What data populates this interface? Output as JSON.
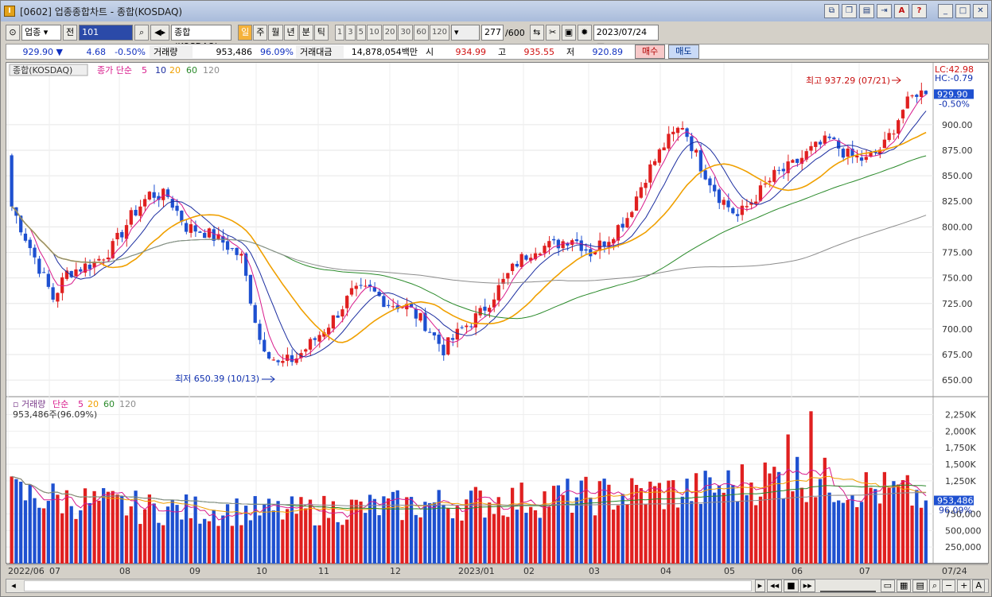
{
  "window": {
    "title": "[0602] 업종종합차트 - 종합(KOSDAQ)",
    "title_icons": [
      "link-icon",
      "copy-icon",
      "print-icon",
      "pin-icon",
      "a-icon",
      "help-icon"
    ],
    "window_icons": [
      "minimize-icon",
      "maximize-icon",
      "close-icon"
    ]
  },
  "toolbar": {
    "market_select": "업종",
    "prev_label": "전",
    "code_value": "101",
    "name_value": "종합(KOSDAQ)",
    "period_buttons": [
      "일",
      "주",
      "월",
      "년",
      "분",
      "틱"
    ],
    "active_period": "일",
    "interval_buttons": [
      "1",
      "3",
      "5",
      "10",
      "20",
      "30",
      "60",
      "120"
    ],
    "count_value": "277",
    "count_total": "/600",
    "date_value": "2023/07/24"
  },
  "quote": {
    "price": "929.90",
    "direction": "▼",
    "change": "4.68",
    "change_pct": "-0.50%",
    "volume_label": "거래량",
    "volume_value": "953,486",
    "volume_pct": "96.09%",
    "amount_label": "거래대금",
    "amount_value": "14,878,054백만",
    "open_label": "시",
    "open_value": "934.99",
    "high_label": "고",
    "high_value": "935.55",
    "low_label": "저",
    "low_value": "920.89",
    "buy_label": "매수",
    "sell_label": "매도"
  },
  "price_panel": {
    "legend_name": "종합(KOSDAQ)",
    "ma_label": "종가 단순",
    "ma_periods": [
      "5",
      "10",
      "20",
      "60",
      "120"
    ],
    "ma_colors": [
      "#d81b8c",
      "#1c2ea0",
      "#f0a000",
      "#2a8a2a",
      "#8c8c8c"
    ],
    "y_ticks": [
      "900.00",
      "875.00",
      "850.00",
      "825.00",
      "800.00",
      "775.00",
      "750.00",
      "725.00",
      "700.00",
      "675.00",
      "650.00"
    ],
    "lc_label": "LC:42.98",
    "hc_label": "HC:-0.79",
    "last_price_tag": "929.90",
    "last_change_tag": "-0.50%",
    "high_annotation": "최고 937.29 (07/21)",
    "low_annotation": "최저 650.39 (10/13)"
  },
  "volume_panel": {
    "legend_name": "거래량",
    "ma_label": "단순",
    "ma_periods": [
      "5",
      "20",
      "60",
      "120"
    ],
    "current_text": "953,486주(96.09%)",
    "y_ticks": [
      "2,250K",
      "2,000K",
      "1,750K",
      "1,500K",
      "1,250K",
      "750,000",
      "500,000",
      "250,000"
    ],
    "last_volume_tag": "953,486",
    "last_pct_tag": "96.09%"
  },
  "x_axis": {
    "labels": [
      "2022/06",
      "07",
      "08",
      "09",
      "10",
      "11",
      "12",
      "2023/01",
      "02",
      "03",
      "04",
      "05",
      "06",
      "07"
    ],
    "right_label": "07/24"
  },
  "colors": {
    "up": "#e02020",
    "down": "#1e50d0",
    "accent": "#f5b23a"
  },
  "chart_data": [
    {
      "type": "candlestick",
      "title": "종합(KOSDAQ)",
      "ylim": [
        640,
        945
      ],
      "start_value": 870,
      "path": [
        [
          0,
          820
        ],
        [
          6,
          760
        ],
        [
          9,
          730
        ],
        [
          12,
          755
        ],
        [
          18,
          765
        ],
        [
          22,
          780
        ],
        [
          26,
          810
        ],
        [
          30,
          832
        ],
        [
          34,
          830
        ],
        [
          38,
          800
        ],
        [
          42,
          795
        ],
        [
          46,
          785
        ],
        [
          50,
          770
        ],
        [
          54,
          690
        ],
        [
          58,
          665
        ],
        [
          62,
          672
        ],
        [
          66,
          690
        ],
        [
          70,
          710
        ],
        [
          74,
          735
        ],
        [
          78,
          738
        ],
        [
          82,
          725
        ],
        [
          86,
          722
        ],
        [
          90,
          705
        ],
        [
          94,
          680
        ],
        [
          98,
          700
        ],
        [
          102,
          715
        ],
        [
          106,
          740
        ],
        [
          110,
          765
        ],
        [
          114,
          780
        ],
        [
          118,
          782
        ],
        [
          122,
          790
        ],
        [
          126,
          775
        ],
        [
          130,
          790
        ],
        [
          134,
          810
        ],
        [
          138,
          850
        ],
        [
          142,
          880
        ],
        [
          146,
          900
        ],
        [
          150,
          860
        ],
        [
          154,
          830
        ],
        [
          158,
          810
        ],
        [
          162,
          830
        ],
        [
          166,
          850
        ],
        [
          170,
          860
        ],
        [
          174,
          875
        ],
        [
          178,
          885
        ],
        [
          182,
          870
        ],
        [
          186,
          865
        ],
        [
          190,
          880
        ],
        [
          194,
          915
        ],
        [
          197,
          932
        ],
        [
          199,
          930
        ]
      ],
      "annotations": [
        {
          "text": "최고 937.29 (07/21)",
          "value": 937.29
        },
        {
          "text": "최저 650.39 (10/13)",
          "value": 650.39
        }
      ]
    },
    {
      "type": "bar",
      "title": "거래량",
      "ylim": [
        0,
        2400000
      ],
      "levels": [
        [
          0,
          1050000
        ],
        [
          30,
          830000
        ],
        [
          60,
          780000
        ],
        [
          90,
          890000
        ],
        [
          120,
          1000000
        ],
        [
          150,
          1100000
        ],
        [
          170,
          1350000
        ],
        [
          180,
          1200000
        ],
        [
          199,
          1000000
        ]
      ]
    }
  ]
}
